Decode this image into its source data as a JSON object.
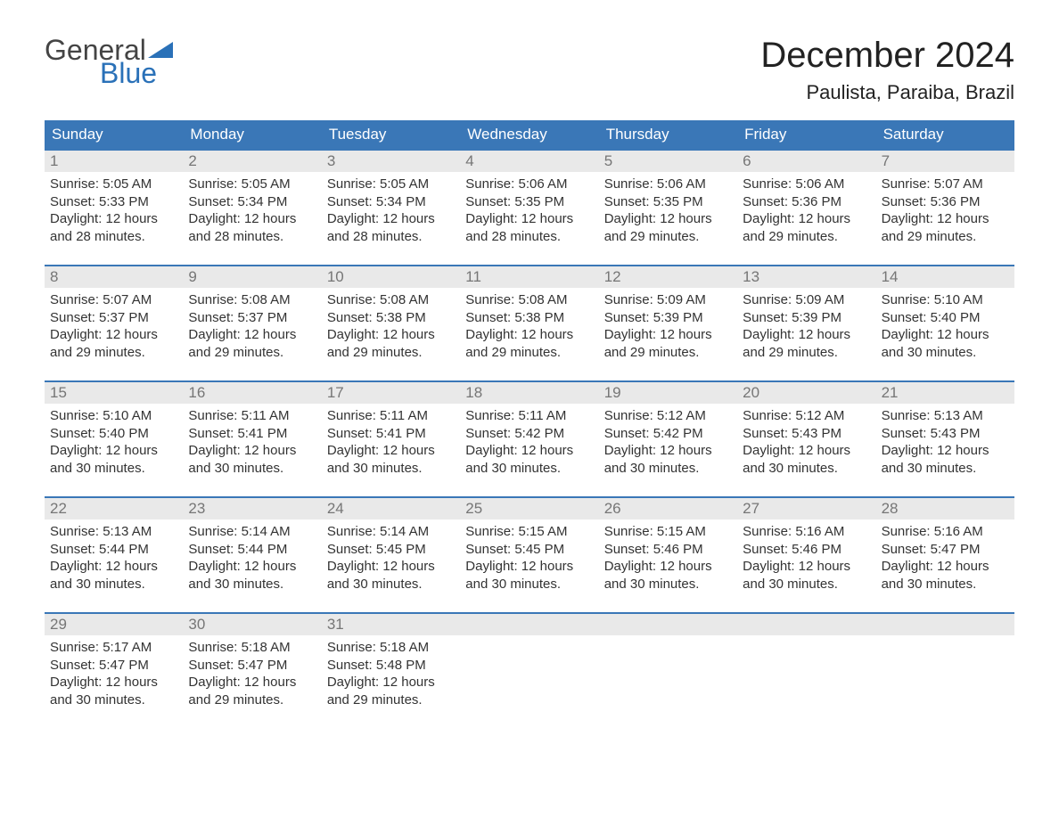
{
  "logo": {
    "text1": "General",
    "text2": "Blue",
    "flag_color": "#2a71b8"
  },
  "title": "December 2024",
  "location": "Paulista, Paraiba, Brazil",
  "colors": {
    "header_bg": "#3a77b7",
    "header_text": "#ffffff",
    "daynum_bg": "#e9e9e9",
    "daynum_text": "#767676",
    "border": "#3a77b7",
    "body_text": "#333333",
    "background": "#ffffff"
  },
  "fonts": {
    "title_size": 40,
    "location_size": 22,
    "header_size": 17,
    "cell_size": 15
  },
  "day_headers": [
    "Sunday",
    "Monday",
    "Tuesday",
    "Wednesday",
    "Thursday",
    "Friday",
    "Saturday"
  ],
  "weeks": [
    [
      {
        "n": "1",
        "sr": "Sunrise: 5:05 AM",
        "ss": "Sunset: 5:33 PM",
        "d1": "Daylight: 12 hours",
        "d2": "and 28 minutes."
      },
      {
        "n": "2",
        "sr": "Sunrise: 5:05 AM",
        "ss": "Sunset: 5:34 PM",
        "d1": "Daylight: 12 hours",
        "d2": "and 28 minutes."
      },
      {
        "n": "3",
        "sr": "Sunrise: 5:05 AM",
        "ss": "Sunset: 5:34 PM",
        "d1": "Daylight: 12 hours",
        "d2": "and 28 minutes."
      },
      {
        "n": "4",
        "sr": "Sunrise: 5:06 AM",
        "ss": "Sunset: 5:35 PM",
        "d1": "Daylight: 12 hours",
        "d2": "and 28 minutes."
      },
      {
        "n": "5",
        "sr": "Sunrise: 5:06 AM",
        "ss": "Sunset: 5:35 PM",
        "d1": "Daylight: 12 hours",
        "d2": "and 29 minutes."
      },
      {
        "n": "6",
        "sr": "Sunrise: 5:06 AM",
        "ss": "Sunset: 5:36 PM",
        "d1": "Daylight: 12 hours",
        "d2": "and 29 minutes."
      },
      {
        "n": "7",
        "sr": "Sunrise: 5:07 AM",
        "ss": "Sunset: 5:36 PM",
        "d1": "Daylight: 12 hours",
        "d2": "and 29 minutes."
      }
    ],
    [
      {
        "n": "8",
        "sr": "Sunrise: 5:07 AM",
        "ss": "Sunset: 5:37 PM",
        "d1": "Daylight: 12 hours",
        "d2": "and 29 minutes."
      },
      {
        "n": "9",
        "sr": "Sunrise: 5:08 AM",
        "ss": "Sunset: 5:37 PM",
        "d1": "Daylight: 12 hours",
        "d2": "and 29 minutes."
      },
      {
        "n": "10",
        "sr": "Sunrise: 5:08 AM",
        "ss": "Sunset: 5:38 PM",
        "d1": "Daylight: 12 hours",
        "d2": "and 29 minutes."
      },
      {
        "n": "11",
        "sr": "Sunrise: 5:08 AM",
        "ss": "Sunset: 5:38 PM",
        "d1": "Daylight: 12 hours",
        "d2": "and 29 minutes."
      },
      {
        "n": "12",
        "sr": "Sunrise: 5:09 AM",
        "ss": "Sunset: 5:39 PM",
        "d1": "Daylight: 12 hours",
        "d2": "and 29 minutes."
      },
      {
        "n": "13",
        "sr": "Sunrise: 5:09 AM",
        "ss": "Sunset: 5:39 PM",
        "d1": "Daylight: 12 hours",
        "d2": "and 29 minutes."
      },
      {
        "n": "14",
        "sr": "Sunrise: 5:10 AM",
        "ss": "Sunset: 5:40 PM",
        "d1": "Daylight: 12 hours",
        "d2": "and 30 minutes."
      }
    ],
    [
      {
        "n": "15",
        "sr": "Sunrise: 5:10 AM",
        "ss": "Sunset: 5:40 PM",
        "d1": "Daylight: 12 hours",
        "d2": "and 30 minutes."
      },
      {
        "n": "16",
        "sr": "Sunrise: 5:11 AM",
        "ss": "Sunset: 5:41 PM",
        "d1": "Daylight: 12 hours",
        "d2": "and 30 minutes."
      },
      {
        "n": "17",
        "sr": "Sunrise: 5:11 AM",
        "ss": "Sunset: 5:41 PM",
        "d1": "Daylight: 12 hours",
        "d2": "and 30 minutes."
      },
      {
        "n": "18",
        "sr": "Sunrise: 5:11 AM",
        "ss": "Sunset: 5:42 PM",
        "d1": "Daylight: 12 hours",
        "d2": "and 30 minutes."
      },
      {
        "n": "19",
        "sr": "Sunrise: 5:12 AM",
        "ss": "Sunset: 5:42 PM",
        "d1": "Daylight: 12 hours",
        "d2": "and 30 minutes."
      },
      {
        "n": "20",
        "sr": "Sunrise: 5:12 AM",
        "ss": "Sunset: 5:43 PM",
        "d1": "Daylight: 12 hours",
        "d2": "and 30 minutes."
      },
      {
        "n": "21",
        "sr": "Sunrise: 5:13 AM",
        "ss": "Sunset: 5:43 PM",
        "d1": "Daylight: 12 hours",
        "d2": "and 30 minutes."
      }
    ],
    [
      {
        "n": "22",
        "sr": "Sunrise: 5:13 AM",
        "ss": "Sunset: 5:44 PM",
        "d1": "Daylight: 12 hours",
        "d2": "and 30 minutes."
      },
      {
        "n": "23",
        "sr": "Sunrise: 5:14 AM",
        "ss": "Sunset: 5:44 PM",
        "d1": "Daylight: 12 hours",
        "d2": "and 30 minutes."
      },
      {
        "n": "24",
        "sr": "Sunrise: 5:14 AM",
        "ss": "Sunset: 5:45 PM",
        "d1": "Daylight: 12 hours",
        "d2": "and 30 minutes."
      },
      {
        "n": "25",
        "sr": "Sunrise: 5:15 AM",
        "ss": "Sunset: 5:45 PM",
        "d1": "Daylight: 12 hours",
        "d2": "and 30 minutes."
      },
      {
        "n": "26",
        "sr": "Sunrise: 5:15 AM",
        "ss": "Sunset: 5:46 PM",
        "d1": "Daylight: 12 hours",
        "d2": "and 30 minutes."
      },
      {
        "n": "27",
        "sr": "Sunrise: 5:16 AM",
        "ss": "Sunset: 5:46 PM",
        "d1": "Daylight: 12 hours",
        "d2": "and 30 minutes."
      },
      {
        "n": "28",
        "sr": "Sunrise: 5:16 AM",
        "ss": "Sunset: 5:47 PM",
        "d1": "Daylight: 12 hours",
        "d2": "and 30 minutes."
      }
    ],
    [
      {
        "n": "29",
        "sr": "Sunrise: 5:17 AM",
        "ss": "Sunset: 5:47 PM",
        "d1": "Daylight: 12 hours",
        "d2": "and 30 minutes."
      },
      {
        "n": "30",
        "sr": "Sunrise: 5:18 AM",
        "ss": "Sunset: 5:47 PM",
        "d1": "Daylight: 12 hours",
        "d2": "and 29 minutes."
      },
      {
        "n": "31",
        "sr": "Sunrise: 5:18 AM",
        "ss": "Sunset: 5:48 PM",
        "d1": "Daylight: 12 hours",
        "d2": "and 29 minutes."
      },
      null,
      null,
      null,
      null
    ]
  ]
}
